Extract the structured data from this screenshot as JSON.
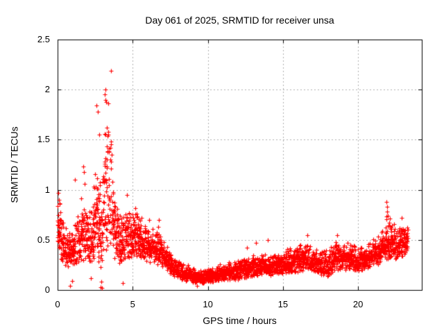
{
  "chart_data": {
    "type": "scatter",
    "title": "Day 061 of 2025, SRMTID for receiver unsa",
    "xlabel": "GPS time / hours",
    "ylabel": "SRMTID / TECUs",
    "xlim": [
      0,
      24.24
    ],
    "ylim": [
      0,
      2.5
    ],
    "xticks": [
      0,
      5,
      10,
      15,
      20
    ],
    "yticks": [
      0,
      0.5,
      1,
      1.5,
      2,
      2.5
    ],
    "grid": true,
    "grid_style": "dashed",
    "legend": "none",
    "marker_shape": "plus",
    "marker_color": "#ff0000",
    "marker_size_px": 7,
    "grid_color": "#b0b0b0",
    "axis_color": "#000000",
    "background_color": "#ffffff",
    "data_x_start": 0.0,
    "data_x_end": 23.3,
    "sample_step_hours": 0.0125,
    "peak_point": [
      3.55,
      2.19
    ],
    "envelope_bins": [
      [
        0.0,
        0.35,
        1.0
      ],
      [
        0.3,
        0.28,
        0.8
      ],
      [
        0.6,
        0.22,
        0.62
      ],
      [
        1.0,
        0.24,
        0.65
      ],
      [
        1.4,
        0.26,
        0.9
      ],
      [
        1.8,
        0.26,
        1.05
      ],
      [
        2.2,
        0.26,
        0.78
      ],
      [
        2.6,
        0.3,
        1.35
      ],
      [
        2.9,
        0.06,
        1.1
      ],
      [
        3.1,
        0.32,
        1.75
      ],
      [
        3.3,
        0.36,
        2.0
      ],
      [
        3.55,
        0.4,
        1.65
      ],
      [
        3.8,
        0.3,
        1.0
      ],
      [
        4.2,
        0.24,
        0.82
      ],
      [
        4.6,
        0.3,
        0.95
      ],
      [
        5.0,
        0.32,
        0.85
      ],
      [
        5.4,
        0.32,
        0.78
      ],
      [
        5.8,
        0.28,
        0.7
      ],
      [
        6.2,
        0.27,
        0.62
      ],
      [
        6.7,
        0.25,
        0.7
      ],
      [
        7.0,
        0.22,
        0.52
      ],
      [
        7.5,
        0.16,
        0.42
      ],
      [
        8.0,
        0.11,
        0.32
      ],
      [
        8.5,
        0.09,
        0.27
      ],
      [
        9.0,
        0.07,
        0.23
      ],
      [
        9.5,
        0.06,
        0.2
      ],
      [
        10.0,
        0.07,
        0.22
      ],
      [
        10.5,
        0.08,
        0.25
      ],
      [
        11.0,
        0.09,
        0.28
      ],
      [
        11.5,
        0.1,
        0.3
      ],
      [
        12.0,
        0.1,
        0.3
      ],
      [
        12.5,
        0.12,
        0.34
      ],
      [
        13.0,
        0.13,
        0.35
      ],
      [
        13.5,
        0.15,
        0.37
      ],
      [
        14.0,
        0.14,
        0.38
      ],
      [
        14.5,
        0.15,
        0.38
      ],
      [
        15.0,
        0.16,
        0.4
      ],
      [
        15.5,
        0.17,
        0.43
      ],
      [
        16.0,
        0.18,
        0.45
      ],
      [
        16.5,
        0.19,
        0.48
      ],
      [
        17.0,
        0.18,
        0.45
      ],
      [
        17.5,
        0.14,
        0.42
      ],
      [
        18.0,
        0.13,
        0.44
      ],
      [
        18.5,
        0.19,
        0.5
      ],
      [
        19.0,
        0.2,
        0.5
      ],
      [
        19.5,
        0.2,
        0.48
      ],
      [
        20.0,
        0.17,
        0.45
      ],
      [
        20.5,
        0.2,
        0.46
      ],
      [
        21.0,
        0.24,
        0.52
      ],
      [
        21.5,
        0.26,
        0.56
      ],
      [
        21.9,
        0.28,
        0.78
      ],
      [
        22.2,
        0.3,
        0.7
      ],
      [
        22.6,
        0.3,
        0.63
      ],
      [
        23.0,
        0.34,
        0.68
      ],
      [
        23.3,
        0.38,
        0.66
      ]
    ],
    "outlier_points": [
      [
        0.05,
        0.97
      ],
      [
        0.08,
        0.9
      ],
      [
        0.15,
        0.86
      ],
      [
        0.83,
        0.04
      ],
      [
        0.95,
        0.09
      ],
      [
        1.15,
        1.1
      ],
      [
        1.7,
        1.23
      ],
      [
        1.75,
        1.18
      ],
      [
        1.8,
        1.06
      ],
      [
        2.2,
        0.12
      ],
      [
        2.6,
        1.84
      ],
      [
        2.7,
        1.78
      ],
      [
        2.75,
        1.55
      ],
      [
        2.88,
        0.03
      ],
      [
        2.9,
        0.08
      ],
      [
        2.95,
        0.02
      ],
      [
        3.15,
        1.95
      ],
      [
        3.2,
        2.0
      ],
      [
        3.2,
        1.9
      ],
      [
        3.25,
        1.88
      ],
      [
        3.3,
        1.62
      ],
      [
        3.35,
        1.58
      ],
      [
        3.5,
        1.42
      ],
      [
        3.55,
        2.19
      ],
      [
        3.6,
        1.35
      ],
      [
        4.35,
        0.07
      ],
      [
        4.6,
        0.95
      ],
      [
        5.15,
        0.82
      ],
      [
        6.1,
        0.7
      ],
      [
        6.75,
        0.7
      ],
      [
        9.3,
        0.04
      ],
      [
        12.6,
        0.42
      ],
      [
        13.2,
        0.47
      ],
      [
        14.0,
        0.5
      ],
      [
        16.6,
        0.55
      ],
      [
        18.6,
        0.55
      ],
      [
        21.9,
        0.88
      ],
      [
        21.92,
        0.83
      ],
      [
        21.95,
        0.78
      ],
      [
        22.0,
        0.74
      ],
      [
        22.9,
        0.72
      ]
    ]
  }
}
